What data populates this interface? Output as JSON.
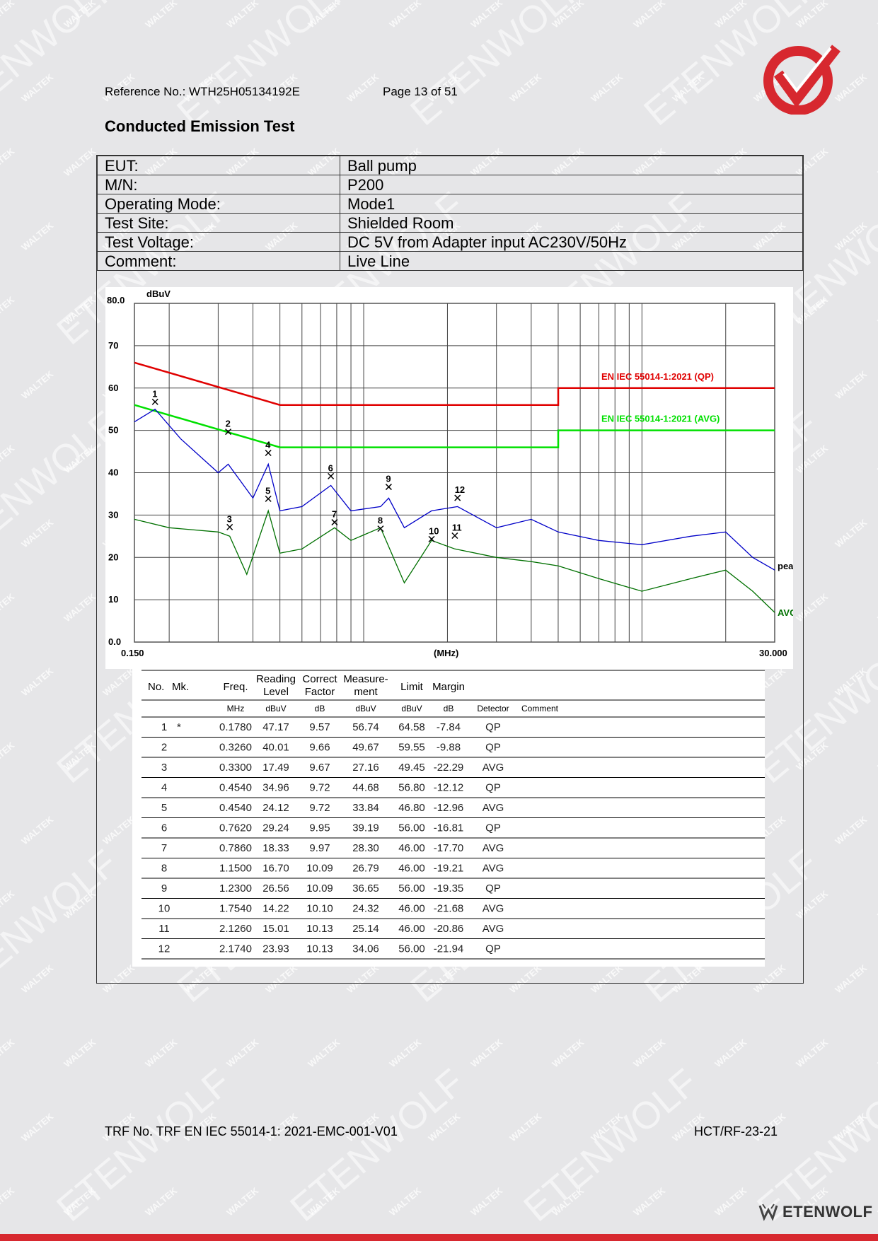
{
  "header": {
    "reference": "Reference No.: WTH25H05134192E",
    "page": "Page 13 of 51",
    "title": "Conducted Emission Test"
  },
  "watermarks": [
    "WALTEK",
    "ETENWOLF"
  ],
  "info_table": [
    {
      "label": "EUT:",
      "value": "Ball pump"
    },
    {
      "label": "M/N:",
      "value": "P200"
    },
    {
      "label": "Operating Mode:",
      "value": "Mode1"
    },
    {
      "label": "Test Site:",
      "value": "Shielded Room"
    },
    {
      "label": "Test Voltage:",
      "value": "DC 5V from Adapter input AC230V/50Hz"
    },
    {
      "label": "Comment:",
      "value": "Live Line"
    }
  ],
  "chart_data": {
    "type": "line",
    "y_unit": "dBuV",
    "x_unit": "(MHz)",
    "x_scale": "log",
    "xlim": [
      0.15,
      30
    ],
    "ylim": [
      0,
      80
    ],
    "y_ticks": [
      "80.0",
      "70",
      "60",
      "50",
      "40",
      "30",
      "20",
      "10",
      "0.0"
    ],
    "x_tick_labels": [
      "0.150",
      "30.000"
    ],
    "grid": true,
    "series": [
      {
        "name": "EN IEC 55014-1:2021 (QP)",
        "color": "#e00000",
        "x": [
          0.15,
          0.5,
          0.5,
          5,
          5,
          30
        ],
        "y": [
          66,
          56,
          56,
          56,
          60,
          60
        ]
      },
      {
        "name": "EN IEC 55014-1:2021 (AVG)",
        "color": "#00e000",
        "x": [
          0.15,
          0.5,
          0.5,
          5,
          5,
          30
        ],
        "y": [
          56,
          46,
          46,
          46,
          50,
          50
        ]
      },
      {
        "name": "peak",
        "color": "#0000c8",
        "x": [
          0.15,
          0.178,
          0.22,
          0.3,
          0.326,
          0.4,
          0.454,
          0.5,
          0.6,
          0.762,
          0.9,
          1.15,
          1.23,
          1.4,
          1.754,
          2.174,
          3,
          4,
          5,
          7,
          10,
          15,
          20,
          25,
          30
        ],
        "y": [
          52,
          55,
          48,
          40,
          42,
          34,
          42,
          31,
          32,
          37,
          31,
          32,
          34,
          27,
          31,
          32,
          27,
          29,
          26,
          24,
          23,
          25,
          26,
          20,
          17
        ]
      },
      {
        "name": "AVG",
        "color": "#007000",
        "x": [
          0.15,
          0.2,
          0.3,
          0.33,
          0.38,
          0.454,
          0.5,
          0.6,
          0.786,
          0.9,
          1.15,
          1.4,
          1.754,
          2.126,
          3,
          4,
          5,
          7,
          10,
          15,
          20,
          25,
          30
        ],
        "y": [
          29,
          27,
          26,
          25,
          16,
          31,
          21,
          22,
          27,
          24,
          27,
          14,
          24,
          22,
          20,
          19,
          18,
          15,
          12,
          15,
          17,
          12,
          7
        ]
      }
    ],
    "markers": [
      {
        "label": "1",
        "x": 0.178,
        "y": 56.74
      },
      {
        "label": "2",
        "x": 0.326,
        "y": 49.67
      },
      {
        "label": "3",
        "x": 0.33,
        "y": 27.16
      },
      {
        "label": "4",
        "x": 0.454,
        "y": 44.68
      },
      {
        "label": "5",
        "x": 0.454,
        "y": 33.84
      },
      {
        "label": "6",
        "x": 0.762,
        "y": 39.19
      },
      {
        "label": "7",
        "x": 0.786,
        "y": 28.3
      },
      {
        "label": "8",
        "x": 1.15,
        "y": 26.79
      },
      {
        "label": "9",
        "x": 1.23,
        "y": 36.65
      },
      {
        "label": "10",
        "x": 1.754,
        "y": 24.32
      },
      {
        "label": "11",
        "x": 2.126,
        "y": 25.14
      },
      {
        "label": "12",
        "x": 2.174,
        "y": 34.06
      }
    ]
  },
  "data_table": {
    "headers": [
      "No.",
      "Mk.",
      "Freq.",
      "Reading Level",
      "Correct Factor",
      "Measure-ment",
      "Limit",
      "Margin",
      "Detector",
      "Comment"
    ],
    "units": [
      "",
      "",
      "MHz",
      "dBuV",
      "dB",
      "dBuV",
      "dBuV",
      "dB",
      "",
      ""
    ],
    "rows": [
      [
        "1",
        "*",
        "0.1780",
        "47.17",
        "9.57",
        "56.74",
        "64.58",
        "-7.84",
        "QP",
        ""
      ],
      [
        "2",
        "",
        "0.3260",
        "40.01",
        "9.66",
        "49.67",
        "59.55",
        "-9.88",
        "QP",
        ""
      ],
      [
        "3",
        "",
        "0.3300",
        "17.49",
        "9.67",
        "27.16",
        "49.45",
        "-22.29",
        "AVG",
        ""
      ],
      [
        "4",
        "",
        "0.4540",
        "34.96",
        "9.72",
        "44.68",
        "56.80",
        "-12.12",
        "QP",
        ""
      ],
      [
        "5",
        "",
        "0.4540",
        "24.12",
        "9.72",
        "33.84",
        "46.80",
        "-12.96",
        "AVG",
        ""
      ],
      [
        "6",
        "",
        "0.7620",
        "29.24",
        "9.95",
        "39.19",
        "56.00",
        "-16.81",
        "QP",
        ""
      ],
      [
        "7",
        "",
        "0.7860",
        "18.33",
        "9.97",
        "28.30",
        "46.00",
        "-17.70",
        "AVG",
        ""
      ],
      [
        "8",
        "",
        "1.1500",
        "16.70",
        "10.09",
        "26.79",
        "46.00",
        "-19.21",
        "AVG",
        ""
      ],
      [
        "9",
        "",
        "1.2300",
        "26.56",
        "10.09",
        "36.65",
        "56.00",
        "-19.35",
        "QP",
        ""
      ],
      [
        "10",
        "",
        "1.7540",
        "14.22",
        "10.10",
        "24.32",
        "46.00",
        "-21.68",
        "AVG",
        ""
      ],
      [
        "11",
        "",
        "2.1260",
        "15.01",
        "10.13",
        "25.14",
        "46.00",
        "-20.86",
        "AVG",
        ""
      ],
      [
        "12",
        "",
        "2.1740",
        "23.93",
        "10.13",
        "34.06",
        "56.00",
        "-21.94",
        "QP",
        ""
      ]
    ]
  },
  "footer": {
    "trf": "TRF No. TRF EN IEC 55014-1: 2021-EMC-001-V01",
    "code": "HCT/RF-23-21",
    "brand": "ETENWOLF"
  },
  "colors": {
    "brand_red": "#d7282f",
    "qp_limit": "#e00000",
    "avg_limit": "#00e000",
    "peak": "#0000c8",
    "avg": "#007000"
  }
}
